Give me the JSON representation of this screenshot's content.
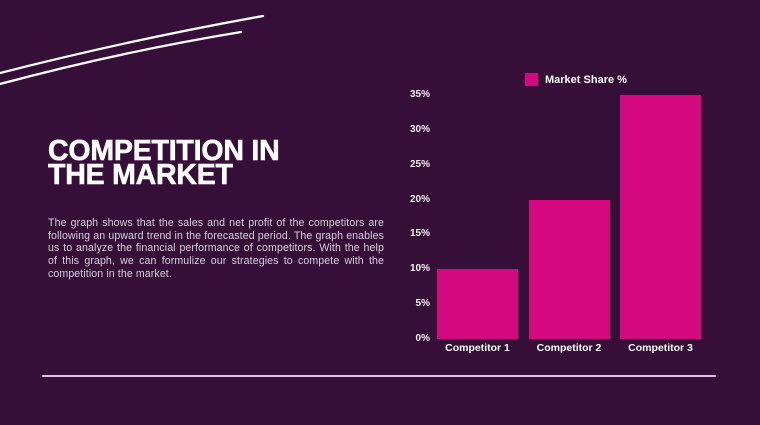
{
  "slide": {
    "title_lines": [
      "COMPETITION IN",
      "THE MARKET"
    ],
    "body": "The graph shows that the sales and net profit of the competitors are following an upward trend in the forecasted period. The graph enables us to analyze the financial performance of competitors. With the help of this graph, we can formulize our strategies to compete with the competition in the market."
  },
  "colors": {
    "background": "#350f37",
    "accent_bar": "#d40980",
    "title_text": "#ffffff",
    "body_text": "#d8cfdc",
    "axis_text": "#f5f0f5",
    "divider": "#e3bfe0",
    "decor_lines": "#ffffff"
  },
  "chart_data": {
    "type": "bar",
    "title": "",
    "legend_label": "Market Share %",
    "legend_position": "top",
    "categories": [
      "Competitor 1",
      "Competitor 2",
      "Competitor 3"
    ],
    "series": [
      {
        "name": "Market Share %",
        "color": "#d40980",
        "values": [
          10,
          20,
          35
        ]
      }
    ],
    "ylim": [
      0,
      35
    ],
    "ytick_step": 5,
    "ytick_labels": [
      "0%",
      "5%",
      "10%",
      "15%",
      "20%",
      "25%",
      "30%",
      "35%"
    ],
    "grid": false,
    "ylabel": "",
    "xlabel": ""
  }
}
